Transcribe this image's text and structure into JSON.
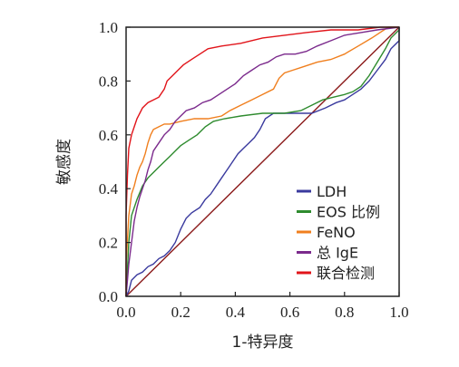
{
  "chart_data": {
    "type": "line",
    "xlabel": "1-特异度",
    "ylabel": "敏感度",
    "xlim": [
      0,
      1
    ],
    "ylim": [
      0,
      1
    ],
    "xticks": [
      "0.0",
      "0.2",
      "0.4",
      "0.6",
      "0.8",
      "1.0"
    ],
    "yticks": [
      "0.0",
      "0.2",
      "0.4",
      "0.6",
      "0.8",
      "1.0"
    ],
    "legend_position": "bottom-right",
    "reference_line": {
      "color": "#8b1a1a",
      "x": [
        0,
        1
      ],
      "y": [
        0,
        1
      ]
    },
    "series": [
      {
        "name": "LDH",
        "color": "#3a3a9e",
        "points": [
          [
            0,
            0
          ],
          [
            0.01,
            0.02
          ],
          [
            0.02,
            0.06
          ],
          [
            0.04,
            0.08
          ],
          [
            0.06,
            0.09
          ],
          [
            0.08,
            0.11
          ],
          [
            0.1,
            0.12
          ],
          [
            0.12,
            0.14
          ],
          [
            0.14,
            0.15
          ],
          [
            0.16,
            0.17
          ],
          [
            0.18,
            0.2
          ],
          [
            0.2,
            0.25
          ],
          [
            0.22,
            0.29
          ],
          [
            0.24,
            0.31
          ],
          [
            0.27,
            0.33
          ],
          [
            0.29,
            0.36
          ],
          [
            0.31,
            0.38
          ],
          [
            0.33,
            0.41
          ],
          [
            0.35,
            0.44
          ],
          [
            0.37,
            0.47
          ],
          [
            0.39,
            0.5
          ],
          [
            0.41,
            0.53
          ],
          [
            0.43,
            0.55
          ],
          [
            0.45,
            0.57
          ],
          [
            0.47,
            0.59
          ],
          [
            0.49,
            0.62
          ],
          [
            0.51,
            0.66
          ],
          [
            0.54,
            0.68
          ],
          [
            0.57,
            0.68
          ],
          [
            0.62,
            0.68
          ],
          [
            0.68,
            0.68
          ],
          [
            0.73,
            0.7
          ],
          [
            0.77,
            0.72
          ],
          [
            0.8,
            0.73
          ],
          [
            0.83,
            0.75
          ],
          [
            0.86,
            0.77
          ],
          [
            0.89,
            0.8
          ],
          [
            0.92,
            0.84
          ],
          [
            0.95,
            0.88
          ],
          [
            0.97,
            0.92
          ],
          [
            1,
            0.95
          ],
          [
            1,
            1
          ]
        ]
      },
      {
        "name": "EOS 比例",
        "color": "#2e8b2e",
        "points": [
          [
            0,
            0
          ],
          [
            0.01,
            0.2
          ],
          [
            0.02,
            0.3
          ],
          [
            0.04,
            0.36
          ],
          [
            0.06,
            0.41
          ],
          [
            0.08,
            0.44
          ],
          [
            0.1,
            0.46
          ],
          [
            0.12,
            0.48
          ],
          [
            0.14,
            0.5
          ],
          [
            0.16,
            0.52
          ],
          [
            0.18,
            0.54
          ],
          [
            0.2,
            0.56
          ],
          [
            0.23,
            0.58
          ],
          [
            0.26,
            0.6
          ],
          [
            0.29,
            0.63
          ],
          [
            0.32,
            0.65
          ],
          [
            0.36,
            0.66
          ],
          [
            0.42,
            0.67
          ],
          [
            0.5,
            0.68
          ],
          [
            0.58,
            0.68
          ],
          [
            0.64,
            0.69
          ],
          [
            0.68,
            0.71
          ],
          [
            0.72,
            0.73
          ],
          [
            0.76,
            0.74
          ],
          [
            0.8,
            0.75
          ],
          [
            0.83,
            0.76
          ],
          [
            0.86,
            0.78
          ],
          [
            0.89,
            0.82
          ],
          [
            0.92,
            0.87
          ],
          [
            0.95,
            0.92
          ],
          [
            0.97,
            0.96
          ],
          [
            1,
            0.99
          ],
          [
            1,
            1
          ]
        ]
      },
      {
        "name": "FeNO",
        "color": "#f07f1e",
        "points": [
          [
            0,
            0
          ],
          [
            0,
            0.12
          ],
          [
            0.01,
            0.3
          ],
          [
            0.02,
            0.38
          ],
          [
            0.03,
            0.41
          ],
          [
            0.04,
            0.45
          ],
          [
            0.05,
            0.48
          ],
          [
            0.06,
            0.5
          ],
          [
            0.07,
            0.53
          ],
          [
            0.08,
            0.57
          ],
          [
            0.09,
            0.6
          ],
          [
            0.1,
            0.62
          ],
          [
            0.12,
            0.63
          ],
          [
            0.14,
            0.64
          ],
          [
            0.16,
            0.64
          ],
          [
            0.2,
            0.65
          ],
          [
            0.25,
            0.66
          ],
          [
            0.3,
            0.66
          ],
          [
            0.35,
            0.67
          ],
          [
            0.38,
            0.69
          ],
          [
            0.42,
            0.71
          ],
          [
            0.46,
            0.73
          ],
          [
            0.5,
            0.75
          ],
          [
            0.54,
            0.77
          ],
          [
            0.56,
            0.81
          ],
          [
            0.58,
            0.83
          ],
          [
            0.61,
            0.84
          ],
          [
            0.64,
            0.85
          ],
          [
            0.67,
            0.86
          ],
          [
            0.7,
            0.87
          ],
          [
            0.75,
            0.88
          ],
          [
            0.8,
            0.9
          ],
          [
            0.85,
            0.93
          ],
          [
            0.9,
            0.96
          ],
          [
            0.93,
            0.98
          ],
          [
            0.96,
            1
          ],
          [
            1,
            1
          ]
        ]
      },
      {
        "name": "总 IgE",
        "color": "#7b2a8c",
        "points": [
          [
            0,
            0
          ],
          [
            0.01,
            0.12
          ],
          [
            0.02,
            0.2
          ],
          [
            0.03,
            0.28
          ],
          [
            0.04,
            0.33
          ],
          [
            0.05,
            0.37
          ],
          [
            0.06,
            0.4
          ],
          [
            0.07,
            0.43
          ],
          [
            0.08,
            0.47
          ],
          [
            0.09,
            0.5
          ],
          [
            0.1,
            0.54
          ],
          [
            0.12,
            0.57
          ],
          [
            0.14,
            0.6
          ],
          [
            0.16,
            0.62
          ],
          [
            0.18,
            0.65
          ],
          [
            0.2,
            0.67
          ],
          [
            0.22,
            0.69
          ],
          [
            0.25,
            0.7
          ],
          [
            0.28,
            0.72
          ],
          [
            0.31,
            0.73
          ],
          [
            0.34,
            0.75
          ],
          [
            0.37,
            0.77
          ],
          [
            0.4,
            0.79
          ],
          [
            0.43,
            0.82
          ],
          [
            0.46,
            0.84
          ],
          [
            0.49,
            0.86
          ],
          [
            0.52,
            0.87
          ],
          [
            0.55,
            0.89
          ],
          [
            0.58,
            0.9
          ],
          [
            0.62,
            0.9
          ],
          [
            0.66,
            0.91
          ],
          [
            0.7,
            0.93
          ],
          [
            0.75,
            0.95
          ],
          [
            0.8,
            0.97
          ],
          [
            0.86,
            0.98
          ],
          [
            0.92,
            0.99
          ],
          [
            1,
            1
          ]
        ]
      },
      {
        "name": "联合检测",
        "color": "#e1141a",
        "points": [
          [
            0,
            0
          ],
          [
            0,
            0.3
          ],
          [
            0.005,
            0.45
          ],
          [
            0.01,
            0.55
          ],
          [
            0.02,
            0.6
          ],
          [
            0.03,
            0.63
          ],
          [
            0.04,
            0.66
          ],
          [
            0.05,
            0.68
          ],
          [
            0.06,
            0.7
          ],
          [
            0.07,
            0.71
          ],
          [
            0.08,
            0.72
          ],
          [
            0.1,
            0.73
          ],
          [
            0.12,
            0.74
          ],
          [
            0.14,
            0.77
          ],
          [
            0.15,
            0.8
          ],
          [
            0.17,
            0.82
          ],
          [
            0.19,
            0.84
          ],
          [
            0.21,
            0.86
          ],
          [
            0.24,
            0.88
          ],
          [
            0.27,
            0.9
          ],
          [
            0.3,
            0.92
          ],
          [
            0.35,
            0.93
          ],
          [
            0.42,
            0.94
          ],
          [
            0.5,
            0.96
          ],
          [
            0.58,
            0.97
          ],
          [
            0.66,
            0.98
          ],
          [
            0.75,
            0.99
          ],
          [
            0.85,
            0.99
          ],
          [
            0.93,
            1
          ],
          [
            1,
            1
          ]
        ]
      }
    ]
  }
}
